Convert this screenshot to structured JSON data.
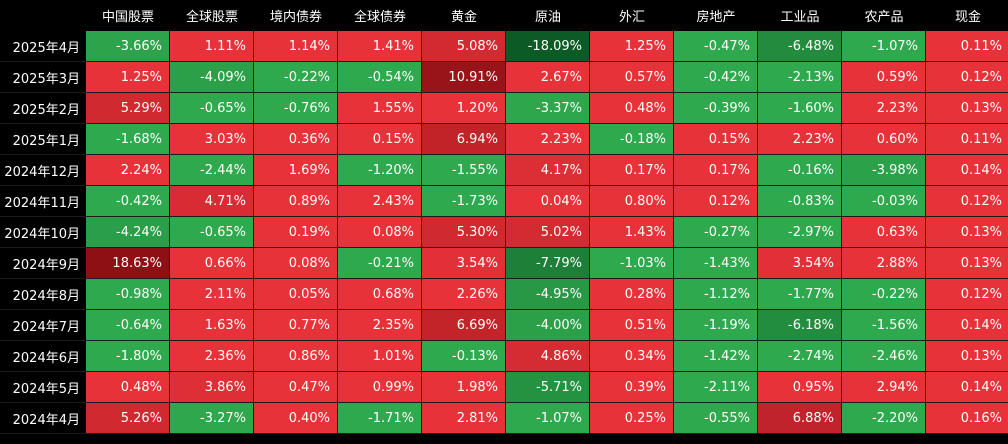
{
  "chart_data": {
    "type": "heatmap",
    "columns": [
      "中国股票",
      "全球股票",
      "境内债券",
      "全球债券",
      "黄金",
      "原油",
      "外汇",
      "房地产",
      "工业品",
      "农产品",
      "现金"
    ],
    "rows": [
      "2025年4月",
      "2025年3月",
      "2025年2月",
      "2025年1月",
      "2024年12月",
      "2024年11月",
      "2024年10月",
      "2024年9月",
      "2024年8月",
      "2024年7月",
      "2024年6月",
      "2024年5月",
      "2024年4月"
    ],
    "values": [
      [
        -3.66,
        1.11,
        1.14,
        1.41,
        5.08,
        -18.09,
        1.25,
        -0.47,
        -6.48,
        -1.07,
        0.11
      ],
      [
        1.25,
        -4.09,
        -0.22,
        -0.54,
        10.91,
        2.67,
        0.57,
        -0.42,
        -2.13,
        0.59,
        0.12
      ],
      [
        5.29,
        -0.65,
        -0.76,
        1.55,
        1.2,
        -3.37,
        0.48,
        -0.39,
        -1.6,
        2.23,
        0.13
      ],
      [
        -1.68,
        3.03,
        0.36,
        0.15,
        6.94,
        2.23,
        -0.18,
        0.15,
        2.23,
        0.6,
        0.11
      ],
      [
        2.24,
        -2.44,
        1.69,
        -1.2,
        -1.55,
        4.17,
        0.17,
        0.17,
        -0.16,
        -3.98,
        0.14
      ],
      [
        -0.42,
        4.71,
        0.89,
        2.43,
        -1.73,
        0.04,
        0.8,
        0.12,
        -0.83,
        -0.03,
        0.12
      ],
      [
        -4.24,
        -0.65,
        0.19,
        0.08,
        5.3,
        5.02,
        1.43,
        -0.27,
        -2.97,
        0.63,
        0.13
      ],
      [
        18.63,
        0.66,
        0.08,
        -0.21,
        3.54,
        -7.79,
        -1.03,
        -1.43,
        3.54,
        2.88,
        0.13
      ],
      [
        -0.98,
        2.11,
        0.05,
        0.68,
        2.26,
        -4.95,
        0.28,
        -1.12,
        -1.77,
        -0.22,
        0.12
      ],
      [
        -0.64,
        1.63,
        0.77,
        2.35,
        6.69,
        -4.0,
        0.51,
        -1.19,
        -6.18,
        -1.56,
        0.14
      ],
      [
        -1.8,
        2.36,
        0.86,
        1.01,
        -0.13,
        4.86,
        0.34,
        -1.42,
        -2.74,
        -2.46,
        0.13
      ],
      [
        0.48,
        3.86,
        0.47,
        0.99,
        1.98,
        -5.71,
        0.39,
        -2.11,
        0.95,
        2.94,
        0.14
      ],
      [
        5.26,
        -3.27,
        0.4,
        -1.71,
        2.81,
        -1.07,
        0.25,
        -0.55,
        6.88,
        -2.2,
        0.16
      ]
    ],
    "value_format": "percent_2dp",
    "colors": {
      "positive": "#e8323a",
      "positive_strong": "#8e1014",
      "negative": "#2fa94e",
      "negative_strong": "#0d5b24"
    }
  }
}
